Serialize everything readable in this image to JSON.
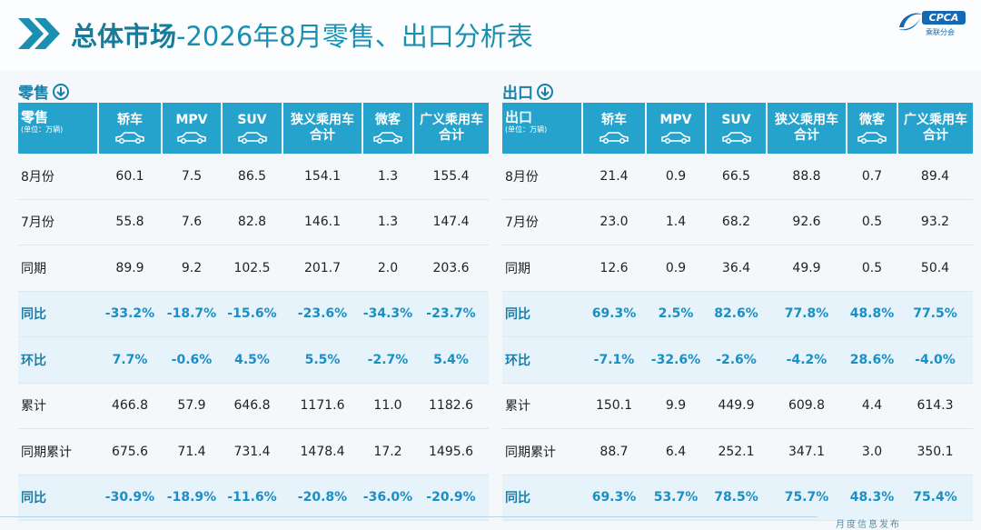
{
  "title": {
    "bold": "总体市场",
    "rest": "-2026年8月零售、出口分析表"
  },
  "logo": {
    "text": "CPCA",
    "subtitle": "乘联分会"
  },
  "footer": "月度信息发布",
  "columns": [
    "轿车",
    "MPV",
    "SUV",
    "狭义乘用车合计",
    "微客",
    "广义乘用车合计"
  ],
  "retail": {
    "section_title": "零售",
    "header_label": "零售",
    "unit": "(单位：万辆)",
    "rows": [
      {
        "label": "8月份",
        "highlight": false,
        "cells": [
          "60.1",
          "7.5",
          "86.5",
          "154.1",
          "1.3",
          "155.4"
        ]
      },
      {
        "label": "7月份",
        "highlight": false,
        "cells": [
          "55.8",
          "7.6",
          "82.8",
          "146.1",
          "1.3",
          "147.4"
        ]
      },
      {
        "label": "同期",
        "highlight": false,
        "cells": [
          "89.9",
          "9.2",
          "102.5",
          "201.7",
          "2.0",
          "203.6"
        ]
      },
      {
        "label": "同比",
        "highlight": true,
        "cells": [
          "-33.2%",
          "-18.7%",
          "-15.6%",
          "-23.6%",
          "-34.3%",
          "-23.7%"
        ]
      },
      {
        "label": "环比",
        "highlight": true,
        "cells": [
          "7.7%",
          "-0.6%",
          "4.5%",
          "5.5%",
          "-2.7%",
          "5.4%"
        ]
      },
      {
        "label": "累计",
        "highlight": false,
        "cells": [
          "466.8",
          "57.9",
          "646.8",
          "1171.6",
          "11.0",
          "1182.6"
        ]
      },
      {
        "label": "同期累计",
        "highlight": false,
        "cells": [
          "675.6",
          "71.4",
          "731.4",
          "1478.4",
          "17.2",
          "1495.6"
        ]
      },
      {
        "label": "同比",
        "highlight": true,
        "cells": [
          "-30.9%",
          "-18.9%",
          "-11.6%",
          "-20.8%",
          "-36.0%",
          "-20.9%"
        ]
      }
    ]
  },
  "export": {
    "section_title": "出口",
    "header_label": "出口",
    "unit": "(单位：万辆)",
    "rows": [
      {
        "label": "8月份",
        "highlight": false,
        "cells": [
          "21.4",
          "0.9",
          "66.5",
          "88.8",
          "0.7",
          "89.4"
        ]
      },
      {
        "label": "7月份",
        "highlight": false,
        "cells": [
          "23.0",
          "1.4",
          "68.2",
          "92.6",
          "0.5",
          "93.2"
        ]
      },
      {
        "label": "同期",
        "highlight": false,
        "cells": [
          "12.6",
          "0.9",
          "36.4",
          "49.9",
          "0.5",
          "50.4"
        ]
      },
      {
        "label": "同比",
        "highlight": true,
        "cells": [
          "69.3%",
          "2.5%",
          "82.6%",
          "77.8%",
          "48.8%",
          "77.5%"
        ]
      },
      {
        "label": "环比",
        "highlight": true,
        "cells": [
          "-7.1%",
          "-32.6%",
          "-2.6%",
          "-4.2%",
          "28.6%",
          "-4.0%"
        ]
      },
      {
        "label": "累计",
        "highlight": false,
        "cells": [
          "150.1",
          "9.9",
          "449.9",
          "609.8",
          "4.4",
          "614.3"
        ]
      },
      {
        "label": "同期累计",
        "highlight": false,
        "cells": [
          "88.7",
          "6.4",
          "252.1",
          "347.1",
          "3.0",
          "350.1"
        ]
      },
      {
        "label": "同比",
        "highlight": true,
        "cells": [
          "69.3%",
          "53.7%",
          "78.5%",
          "75.7%",
          "48.3%",
          "75.4%"
        ]
      }
    ]
  }
}
